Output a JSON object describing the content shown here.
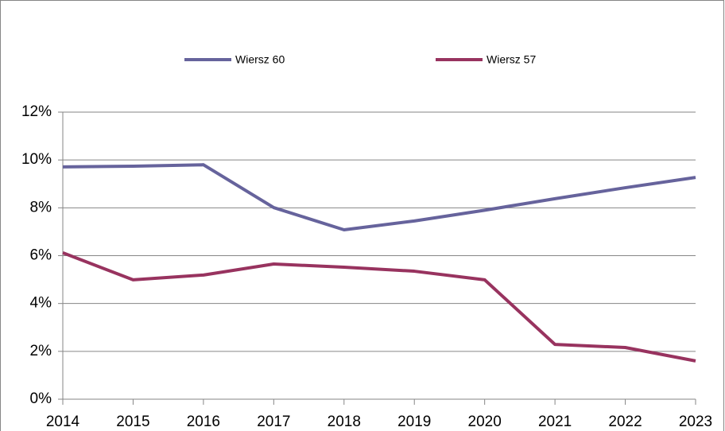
{
  "chart_data": {
    "type": "line",
    "categories": [
      "2014",
      "2015",
      "2016",
      "2017",
      "2018",
      "2019",
      "2020",
      "2021",
      "2022",
      "2023"
    ],
    "series": [
      {
        "name": "Wiersz 60",
        "color": "#66639c",
        "values": [
          9.71,
          9.74,
          9.8,
          8.01,
          7.08,
          7.45,
          7.9,
          8.38,
          8.84,
          9.27
        ]
      },
      {
        "name": "Wiersz 57",
        "color": "#98335f",
        "values": [
          6.12,
          4.99,
          5.19,
          5.65,
          5.52,
          5.35,
          4.99,
          2.29,
          2.16,
          1.6
        ]
      }
    ],
    "ylim": [
      0,
      12
    ],
    "yticks": [
      {
        "value": 0,
        "label": "0%"
      },
      {
        "value": 2,
        "label": "2%"
      },
      {
        "value": 4,
        "label": "4%"
      },
      {
        "value": 6,
        "label": "6%"
      },
      {
        "value": 8,
        "label": "8%"
      },
      {
        "value": 10,
        "label": "10%"
      },
      {
        "value": 12,
        "label": "12%"
      }
    ],
    "grid": true,
    "legend": "top"
  }
}
